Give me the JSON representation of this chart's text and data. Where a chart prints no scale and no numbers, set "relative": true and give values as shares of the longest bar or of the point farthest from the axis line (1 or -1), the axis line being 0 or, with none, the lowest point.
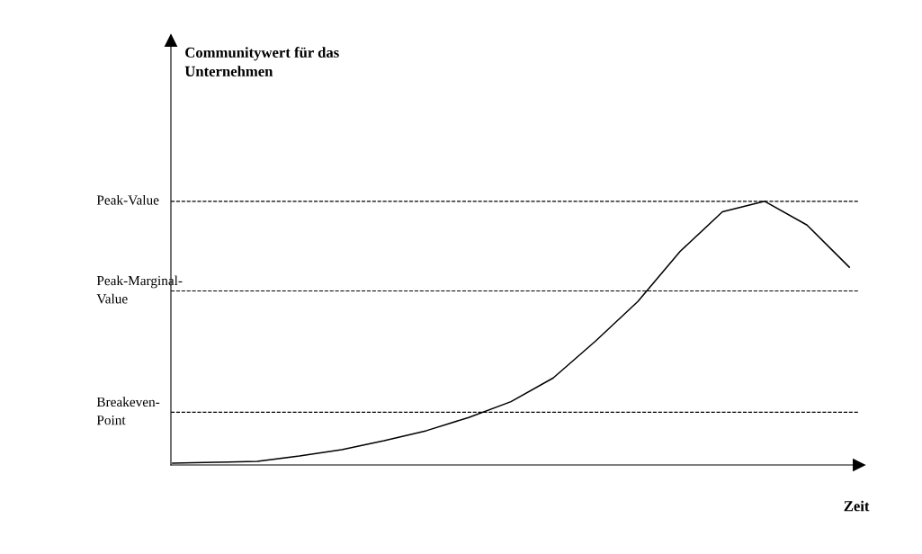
{
  "chart_data": {
    "type": "line",
    "relative": true,
    "annotations": [
      "Communitywert für das\nUnternehmen"
    ],
    "xlabel": "Zeit",
    "categories": [
      null,
      null,
      null,
      null,
      null,
      null,
      null,
      null,
      null,
      null,
      null,
      null,
      null,
      null,
      null,
      null,
      null
    ],
    "series": [
      {
        "color": "#000000",
        "values": [
          0.007,
          0.01,
          0.014,
          0.034,
          0.058,
          0.092,
          0.13,
          0.18,
          0.24,
          0.33,
          0.47,
          0.62,
          0.81,
          0.96,
          1.0,
          0.91,
          0.75
        ]
      }
    ],
    "ref_lines": [
      {
        "axis": "y",
        "value": 1.0,
        "label": "Peak-Value",
        "color": "#000000",
        "line_style": "dashed"
      },
      {
        "axis": "y",
        "value": 0.66,
        "label": "Peak-Marginal-\nValue",
        "color": "#000000",
        "line_style": "dashed"
      },
      {
        "axis": "y",
        "value": 0.2,
        "label": "Breakeven-\nPoint",
        "color": "#000000",
        "line_style": "dashed"
      }
    ],
    "legend": false,
    "marker": "none",
    "line_style": "solid"
  }
}
